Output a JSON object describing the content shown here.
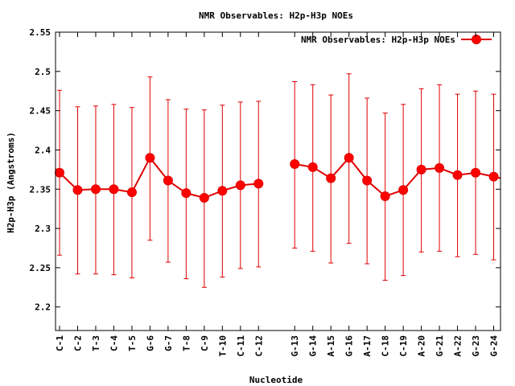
{
  "chart_data": {
    "type": "line",
    "title": "NMR Observables: H2p-H3p NOEs",
    "xlabel": "Nucleotide",
    "ylabel": "H2p-H3p (Angstroms)",
    "ylim": [
      2.17,
      2.55
    ],
    "yticks": [
      "2.2",
      "2.25",
      "2.3",
      "2.35",
      "2.4",
      "2.45",
      "2.5",
      "2.55"
    ],
    "grid": false,
    "legend_position": "top-right",
    "colors": {
      "series": "#e00000",
      "marker": "#ff0000"
    },
    "series": [
      {
        "name": "NMR Observables: H2p-H3p NOEs",
        "segments": [
          {
            "categories": [
              "C-1",
              "C-2",
              "T-3",
              "C-4",
              "T-5",
              "G-6",
              "G-7",
              "T-8",
              "C-9",
              "T-10",
              "C-11",
              "C-12"
            ],
            "values": [
              2.371,
              2.349,
              2.35,
              2.35,
              2.346,
              2.39,
              2.361,
              2.345,
              2.339,
              2.348,
              2.355,
              2.357
            ],
            "err_low": [
              2.266,
              2.242,
              2.242,
              2.241,
              2.237,
              2.285,
              2.257,
              2.236,
              2.225,
              2.238,
              2.249,
              2.251
            ],
            "err_high": [
              2.476,
              2.455,
              2.456,
              2.458,
              2.454,
              2.493,
              2.464,
              2.452,
              2.451,
              2.457,
              2.461,
              2.462
            ]
          },
          {
            "categories": [
              "G-13",
              "G-14",
              "A-15",
              "G-16",
              "A-17",
              "C-18",
              "C-19",
              "A-20",
              "G-21",
              "A-22",
              "G-23",
              "G-24"
            ],
            "values": [
              2.382,
              2.378,
              2.364,
              2.39,
              2.361,
              2.341,
              2.349,
              2.375,
              2.377,
              2.368,
              2.371,
              2.366
            ],
            "err_low": [
              2.275,
              2.271,
              2.256,
              2.281,
              2.255,
              2.234,
              2.24,
              2.27,
              2.271,
              2.264,
              2.267,
              2.26
            ],
            "err_high": [
              2.487,
              2.483,
              2.47,
              2.497,
              2.466,
              2.447,
              2.458,
              2.478,
              2.483,
              2.471,
              2.475,
              2.471
            ]
          }
        ]
      }
    ]
  }
}
